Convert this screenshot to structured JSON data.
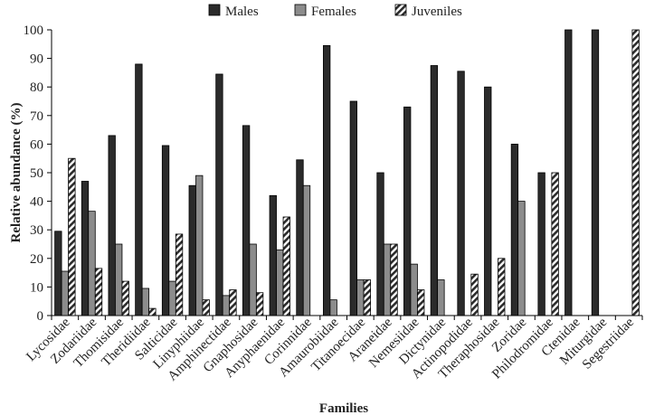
{
  "chart_data": {
    "type": "bar",
    "xlabel": "Families",
    "ylabel": "Relative abundance  (%)",
    "ylim": [
      0,
      100
    ],
    "yticks": [
      0,
      10,
      20,
      30,
      40,
      50,
      60,
      70,
      80,
      90,
      100
    ],
    "legend_position": "top",
    "categories": [
      "Lycosidae",
      "Zodariidae",
      "Thomisidae",
      "Theridiidae",
      "Salticidae",
      "Linyphiidae",
      "Amphinectidae",
      "Gnaphosidae",
      "Anyphaenidae",
      "Corinnidae",
      "Amaurobiidae",
      "Titanoecidae",
      "Araneidae",
      "Nemesiidae",
      "Dictynidae",
      "Actinopodidae",
      "Theraphosidae",
      "Zoridae",
      "Philodromidae",
      "Ctenidae",
      "Miturgidae",
      "Segestriidae"
    ],
    "series": [
      {
        "name": "Males",
        "color": "#2b2b2b",
        "pattern": "solid",
        "values": [
          29.5,
          47,
          63,
          88,
          59.5,
          45.5,
          84.5,
          66.5,
          42,
          54.5,
          94.5,
          75,
          50,
          73,
          87.5,
          85.5,
          80,
          60,
          50,
          100,
          100,
          0
        ]
      },
      {
        "name": "Females",
        "color": "#8c8c8c",
        "pattern": "solid",
        "values": [
          15.5,
          36.5,
          25,
          9.5,
          12,
          49,
          7,
          25,
          23,
          45.5,
          5.5,
          12.5,
          25,
          18,
          12.5,
          0,
          0,
          40,
          0,
          0,
          0,
          0
        ]
      },
      {
        "name": "Juveniles",
        "color": "#2b2b2b",
        "pattern": "hatched",
        "values": [
          55,
          16.5,
          12,
          2.5,
          28.5,
          5.5,
          9,
          8,
          34.5,
          0,
          0,
          12.5,
          25,
          9,
          0,
          14.5,
          20,
          0,
          50,
          0,
          0,
          100
        ]
      }
    ]
  }
}
